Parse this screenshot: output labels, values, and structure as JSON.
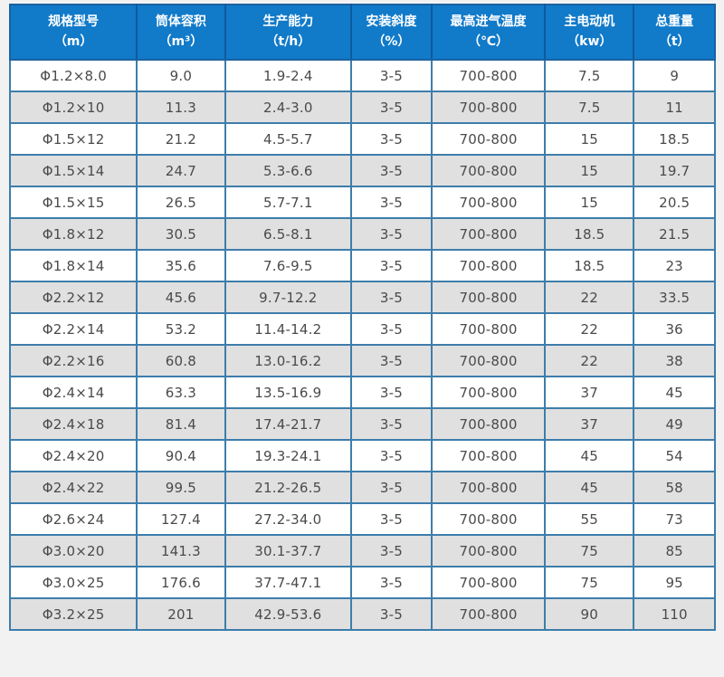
{
  "colors": {
    "header_background": "#117ac9",
    "header_text": "#ffffff",
    "header_divider": "#0d5a9e",
    "outer_border": "#1b62a1",
    "cell_border": "#3d7dab",
    "row_stripe_gray": "#e0e0e0",
    "row_stripe_white": "#ffffff",
    "body_text": "#4a4a4a",
    "page_background": "#f2f2f2"
  },
  "chart_data": {
    "type": "table",
    "title": "",
    "columns": [
      {
        "label": "规格型号",
        "unit": "（m）"
      },
      {
        "label": "筒体容积",
        "unit": "（m³）"
      },
      {
        "label": "生产能力",
        "unit": "（t/h）"
      },
      {
        "label": "安装斜度",
        "unit": "（%）"
      },
      {
        "label": "最高进气温度",
        "unit": "（℃）"
      },
      {
        "label": "主电动机",
        "unit": "（kw）"
      },
      {
        "label": "总重量",
        "unit": "（t）"
      }
    ],
    "rows": [
      [
        "Φ1.2×8.0",
        "9.0",
        "1.9-2.4",
        "3-5",
        "700-800",
        "7.5",
        "9"
      ],
      [
        "Φ1.2×10",
        "11.3",
        "2.4-3.0",
        "3-5",
        "700-800",
        "7.5",
        "11"
      ],
      [
        "Φ1.5×12",
        "21.2",
        "4.5-5.7",
        "3-5",
        "700-800",
        "15",
        "18.5"
      ],
      [
        "Φ1.5×14",
        "24.7",
        "5.3-6.6",
        "3-5",
        "700-800",
        "15",
        "19.7"
      ],
      [
        "Φ1.5×15",
        "26.5",
        "5.7-7.1",
        "3-5",
        "700-800",
        "15",
        "20.5"
      ],
      [
        "Φ1.8×12",
        "30.5",
        "6.5-8.1",
        "3-5",
        "700-800",
        "18.5",
        "21.5"
      ],
      [
        "Φ1.8×14",
        "35.6",
        "7.6-9.5",
        "3-5",
        "700-800",
        "18.5",
        "23"
      ],
      [
        "Φ2.2×12",
        "45.6",
        "9.7-12.2",
        "3-5",
        "700-800",
        "22",
        "33.5"
      ],
      [
        "Φ2.2×14",
        "53.2",
        "11.4-14.2",
        "3-5",
        "700-800",
        "22",
        "36"
      ],
      [
        "Φ2.2×16",
        "60.8",
        "13.0-16.2",
        "3-5",
        "700-800",
        "22",
        "38"
      ],
      [
        "Φ2.4×14",
        "63.3",
        "13.5-16.9",
        "3-5",
        "700-800",
        "37",
        "45"
      ],
      [
        "Φ2.4×18",
        "81.4",
        "17.4-21.7",
        "3-5",
        "700-800",
        "37",
        "49"
      ],
      [
        "Φ2.4×20",
        "90.4",
        "19.3-24.1",
        "3-5",
        "700-800",
        "45",
        "54"
      ],
      [
        "Φ2.4×22",
        "99.5",
        "21.2-26.5",
        "3-5",
        "700-800",
        "45",
        "58"
      ],
      [
        "Φ2.6×24",
        "127.4",
        "27.2-34.0",
        "3-5",
        "700-800",
        "55",
        "73"
      ],
      [
        "Φ3.0×20",
        "141.3",
        "30.1-37.7",
        "3-5",
        "700-800",
        "75",
        "85"
      ],
      [
        "Φ3.0×25",
        "176.6",
        "37.7-47.1",
        "3-5",
        "700-800",
        "75",
        "95"
      ],
      [
        "Φ3.2×25",
        "201",
        "42.9-53.6",
        "3-5",
        "700-800",
        "90",
        "110"
      ]
    ]
  }
}
